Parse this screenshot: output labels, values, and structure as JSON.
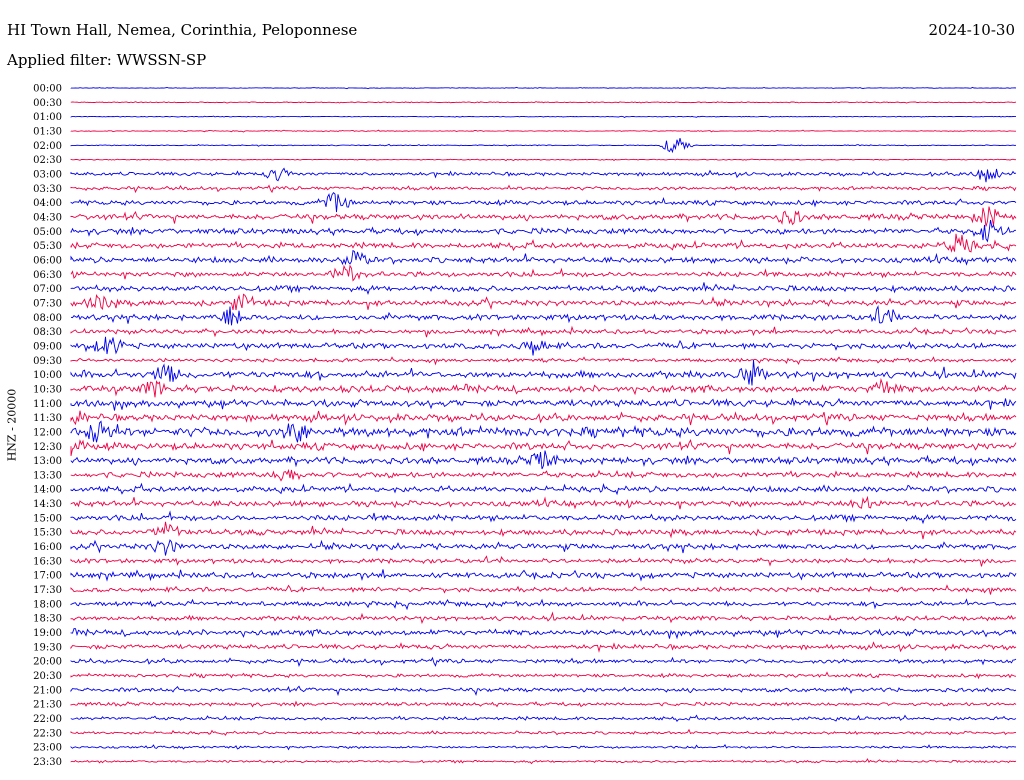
{
  "header": {
    "station": "HI Town Hall, Nemea, Corinthia, Peloponnese",
    "date": "2024-10-30",
    "filter": "Applied filter: WWSSN-SP"
  },
  "colors": {
    "blue": "#0000ee",
    "red": "#ee0044"
  },
  "chart_data": {
    "type": "line",
    "title": "HI Town Hall, Nemea, Corinthia, Peloponnese",
    "ylabel": "HNZ - 20000",
    "xlabel": "",
    "grid": false,
    "rows": [
      "00:00",
      "00:30",
      "01:00",
      "01:30",
      "02:00",
      "02:30",
      "03:00",
      "03:30",
      "04:00",
      "04:30",
      "05:00",
      "05:30",
      "06:00",
      "06:30",
      "07:00",
      "07:30",
      "08:00",
      "08:30",
      "09:00",
      "09:30",
      "10:00",
      "10:30",
      "11:00",
      "11:30",
      "12:00",
      "12:30",
      "13:00",
      "13:30",
      "14:00",
      "14:30",
      "15:00",
      "15:30",
      "16:00",
      "16:30",
      "17:00",
      "17:30",
      "18:00",
      "18:30",
      "19:00",
      "19:30",
      "20:00",
      "20:30",
      "21:00",
      "21:30",
      "22:00",
      "22:30",
      "23:00",
      "23:30"
    ],
    "row_colors": [
      "blue",
      "red"
    ],
    "noise_level": [
      0.3,
      0.4,
      0.3,
      0.4,
      0.4,
      0.4,
      1.5,
      1.5,
      2.0,
      2.5,
      2.5,
      2.5,
      2.5,
      2.2,
      2.5,
      2.5,
      2.5,
      2.0,
      2.5,
      1.5,
      3.0,
      3.0,
      3.0,
      3.0,
      4.0,
      3.0,
      3.0,
      2.5,
      2.5,
      2.5,
      2.5,
      2.5,
      2.5,
      2.0,
      2.5,
      2.0,
      2.0,
      2.0,
      2.5,
      2.0,
      1.8,
      1.5,
      1.8,
      1.5,
      1.5,
      1.2,
      1.0,
      1.0
    ],
    "events": [
      {
        "row": 4,
        "x": 0.64,
        "amp": 9
      },
      {
        "row": 6,
        "x": 0.22,
        "amp": 6
      },
      {
        "row": 6,
        "x": 0.97,
        "amp": 9
      },
      {
        "row": 8,
        "x": 0.28,
        "amp": 10
      },
      {
        "row": 9,
        "x": 0.97,
        "amp": 10
      },
      {
        "row": 9,
        "x": 0.76,
        "amp": 7
      },
      {
        "row": 10,
        "x": 0.97,
        "amp": 10
      },
      {
        "row": 11,
        "x": 0.94,
        "amp": 10
      },
      {
        "row": 12,
        "x": 0.3,
        "amp": 9
      },
      {
        "row": 13,
        "x": 0.29,
        "amp": 9
      },
      {
        "row": 15,
        "x": 0.03,
        "amp": 7
      },
      {
        "row": 15,
        "x": 0.18,
        "amp": 8
      },
      {
        "row": 16,
        "x": 0.17,
        "amp": 10
      },
      {
        "row": 16,
        "x": 0.86,
        "amp": 8
      },
      {
        "row": 18,
        "x": 0.04,
        "amp": 10
      },
      {
        "row": 18,
        "x": 0.49,
        "amp": 7
      },
      {
        "row": 20,
        "x": 0.1,
        "amp": 9
      },
      {
        "row": 20,
        "x": 0.72,
        "amp": 10
      },
      {
        "row": 21,
        "x": 0.09,
        "amp": 8
      },
      {
        "row": 21,
        "x": 0.86,
        "amp": 8
      },
      {
        "row": 23,
        "x": 0.0,
        "amp": 8
      },
      {
        "row": 24,
        "x": 0.03,
        "amp": 12
      },
      {
        "row": 24,
        "x": 0.24,
        "amp": 10
      },
      {
        "row": 25,
        "x": 0.0,
        "amp": 9
      },
      {
        "row": 26,
        "x": 0.5,
        "amp": 8
      },
      {
        "row": 27,
        "x": 0.23,
        "amp": 6
      },
      {
        "row": 29,
        "x": 0.84,
        "amp": 7
      },
      {
        "row": 31,
        "x": 0.1,
        "amp": 8
      },
      {
        "row": 32,
        "x": 0.1,
        "amp": 7
      }
    ]
  }
}
